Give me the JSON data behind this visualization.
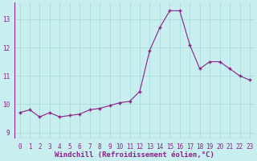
{
  "x": [
    0,
    1,
    2,
    3,
    4,
    5,
    6,
    7,
    8,
    9,
    10,
    11,
    12,
    13,
    14,
    15,
    16,
    17,
    18,
    19,
    20,
    21,
    22,
    23
  ],
  "y": [
    9.7,
    9.8,
    9.55,
    9.7,
    9.55,
    9.6,
    9.65,
    9.8,
    9.85,
    9.95,
    10.05,
    10.1,
    10.45,
    11.9,
    12.7,
    13.3,
    13.3,
    12.1,
    11.25,
    11.5,
    11.5,
    11.25,
    11.0,
    10.85
  ],
  "line_color": "#882288",
  "marker": "+",
  "marker_size": 3,
  "xlabel": "Windchill (Refroidissement éolien,°C)",
  "xlim": [
    -0.5,
    23.5
  ],
  "ylim": [
    8.8,
    13.6
  ],
  "yticks": [
    9,
    10,
    11,
    12,
    13
  ],
  "xticks": [
    0,
    1,
    2,
    3,
    4,
    5,
    6,
    7,
    8,
    9,
    10,
    11,
    12,
    13,
    14,
    15,
    16,
    17,
    18,
    19,
    20,
    21,
    22,
    23
  ],
  "bg_color": "#c8eef0",
  "grid_color": "#aadddd",
  "tick_label_color": "#882288",
  "font_family": "monospace",
  "tick_fontsize": 5.5,
  "xlabel_fontsize": 6.5
}
